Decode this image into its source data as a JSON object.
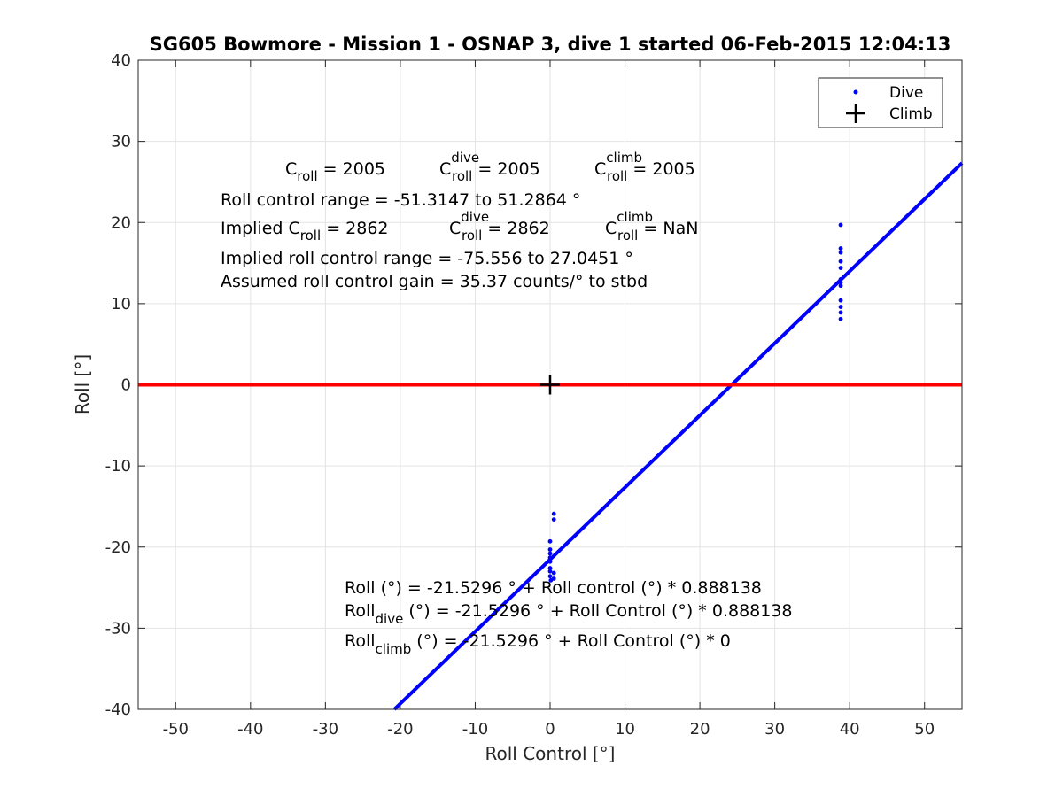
{
  "chart_data": {
    "type": "scatter",
    "title": "SG605 Bowmore - Mission 1 - OSNAP 3, dive 1 started 06-Feb-2015 12:04:13",
    "xlabel": "Roll Control [°]",
    "ylabel": "Roll [°]",
    "xlim": [
      -55,
      55
    ],
    "ylim": [
      -40,
      40
    ],
    "xticks": [
      -50,
      -40,
      -30,
      -20,
      -10,
      0,
      10,
      20,
      30,
      40,
      50
    ],
    "yticks": [
      -40,
      -30,
      -20,
      -10,
      0,
      10,
      20,
      30,
      40
    ],
    "grid": true,
    "legend_position": "top-right",
    "series": [
      {
        "name": "Dive",
        "marker": "dot",
        "color": "#0000ff",
        "points": [
          [
            0.0,
            -19.3
          ],
          [
            0.0,
            -20.3
          ],
          [
            0.0,
            -20.8
          ],
          [
            0.0,
            -21.3
          ],
          [
            0.0,
            -21.8
          ],
          [
            0.0,
            -22.6
          ],
          [
            0.0,
            -23.0
          ],
          [
            0.0,
            -23.6
          ],
          [
            0.1,
            -24.1
          ],
          [
            0.5,
            -15.9
          ],
          [
            0.5,
            -16.6
          ],
          [
            0.5,
            -23.2
          ],
          [
            0.5,
            -23.9
          ],
          [
            38.8,
            19.7
          ],
          [
            38.8,
            16.8
          ],
          [
            38.8,
            16.3
          ],
          [
            38.8,
            15.2
          ],
          [
            38.8,
            14.4
          ],
          [
            38.8,
            13.0
          ],
          [
            38.8,
            12.6
          ],
          [
            38.8,
            12.2
          ],
          [
            38.8,
            10.4
          ],
          [
            38.8,
            9.6
          ],
          [
            38.8,
            8.9
          ],
          [
            38.8,
            8.1
          ]
        ]
      },
      {
        "name": "Climb",
        "marker": "plus",
        "color": "#000000",
        "points": [
          [
            0.0,
            0.0
          ]
        ]
      }
    ],
    "lines": [
      {
        "kind": "fit",
        "color": "#0000ff",
        "intercept": -21.5296,
        "slope": 0.888138,
        "x_range": [
          -20.8,
          55
        ]
      },
      {
        "kind": "horizontal",
        "color": "#ff0000",
        "y": 0
      }
    ]
  },
  "annotations": {
    "line1": {
      "c": "C",
      "roll": "roll",
      "eq1": " = 2005",
      "cd": "C",
      "dive": "dive",
      "roll2": "roll",
      "eq2": " = 2005",
      "cc": "C",
      "climb": "climb",
      "roll3": "roll",
      "eq3": " = 2005"
    },
    "line2": "Roll control range = -51.3147 to 51.2864 °",
    "line3": {
      "pre": "Implied C",
      "roll": "roll",
      "eq1": " = 2862",
      "cd": "C",
      "dive": "dive",
      "roll2": "roll",
      "eq2": " = 2862",
      "cc": "C",
      "climb": "climb",
      "roll3": "roll",
      "eq3": " =  NaN"
    },
    "line4": "Implied roll control range = -75.556 to 27.0451 °",
    "line5": "Assumed roll control gain = 35.37 counts/° to stbd",
    "eq1": "Roll (°) = -21.5296 ° + Roll control (°) * 0.888138",
    "eq2": {
      "pre": "Roll",
      "sub": "dive",
      "post": " (°) = -21.5296 ° + Roll Control (°) * 0.888138"
    },
    "eq3": {
      "pre": "Roll",
      "sub": "climb",
      "post": " (°) = -21.5296 ° + Roll Control (°) * 0"
    }
  }
}
